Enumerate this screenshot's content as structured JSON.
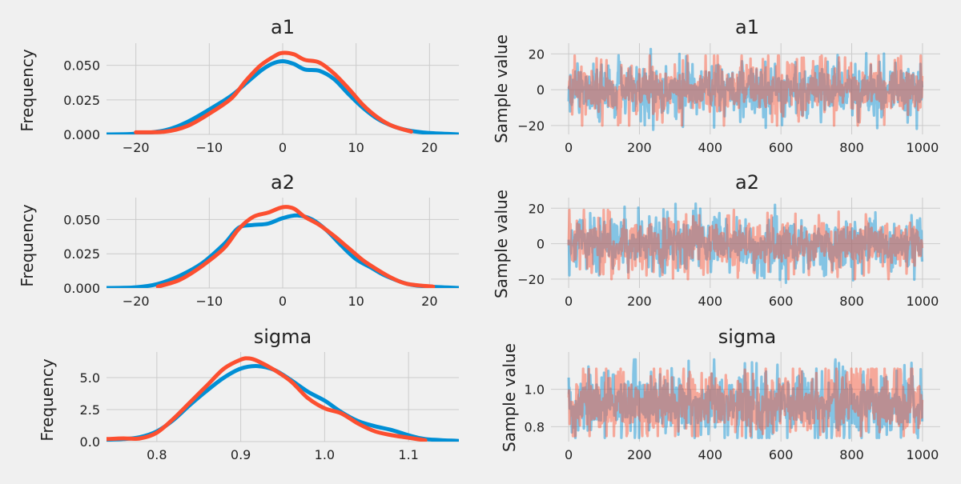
{
  "figure": {
    "background": "#f0f0f0",
    "colors": {
      "chain_1": "#008fd5",
      "chain_2": "#fc4f30"
    }
  },
  "chart_data": [
    {
      "id": "density-a1",
      "type": "line",
      "title": "a1",
      "xlabel": "",
      "ylabel": "Frequency",
      "xlim": [
        -24,
        24
      ],
      "ylim": [
        0,
        0.066
      ],
      "xticks": [
        -20,
        -10,
        0,
        10,
        20
      ],
      "xtick_labels": [
        "−20",
        "−10",
        "0",
        "10",
        "20"
      ],
      "yticks": [
        0,
        0.025,
        0.05
      ],
      "ytick_labels": [
        "0.000",
        "0.025",
        "0.050"
      ],
      "grid": true,
      "series": [
        {
          "color": "#008fd5",
          "x": [
            -24,
            -20,
            -16,
            -13,
            -10,
            -7,
            -5,
            -3,
            -1.5,
            0,
            1.5,
            3,
            5,
            7,
            9,
            11,
            13,
            15,
            17,
            20,
            24
          ],
          "y": [
            0,
            0.0005,
            0.003,
            0.009,
            0.018,
            0.028,
            0.037,
            0.046,
            0.051,
            0.053,
            0.051,
            0.047,
            0.046,
            0.04,
            0.029,
            0.019,
            0.011,
            0.006,
            0.003,
            0.001,
            0
          ]
        },
        {
          "color": "#fc4f30",
          "x": [
            -20,
            -16,
            -13,
            -10,
            -7,
            -5,
            -3,
            -1,
            0,
            1.5,
            3,
            5,
            7,
            9,
            11,
            13,
            15,
            17.5
          ],
          "y": [
            0.0015,
            0.002,
            0.006,
            0.015,
            0.026,
            0.039,
            0.05,
            0.057,
            0.059,
            0.058,
            0.054,
            0.052,
            0.044,
            0.033,
            0.021,
            0.012,
            0.006,
            0.002
          ]
        }
      ]
    },
    {
      "id": "trace-a1",
      "type": "line",
      "title": "a1",
      "xlabel": "",
      "ylabel": "Sample value",
      "xlim": [
        -50,
        1050
      ],
      "ylim": [
        -25,
        26
      ],
      "xticks": [
        0,
        200,
        400,
        600,
        800,
        1000
      ],
      "xtick_labels": [
        "0",
        "200",
        "400",
        "600",
        "800",
        "1000"
      ],
      "yticks": [
        -20,
        0,
        20
      ],
      "ytick_labels": [
        "−20",
        "0",
        "20"
      ],
      "grid": true,
      "trace": {
        "n": 1000,
        "center": 0,
        "sd": 6,
        "chain_1_range": [
          -24.5,
          24.5
        ],
        "chain_2_range": [
          -20,
          19
        ],
        "opacity": 0.45
      }
    },
    {
      "id": "density-a2",
      "type": "line",
      "title": "a2",
      "xlabel": "",
      "ylabel": "Frequency",
      "xlim": [
        -24,
        24
      ],
      "ylim": [
        0,
        0.066
      ],
      "xticks": [
        -20,
        -10,
        0,
        10,
        20
      ],
      "xtick_labels": [
        "−20",
        "−10",
        "0",
        "10",
        "20"
      ],
      "yticks": [
        0,
        0.025,
        0.05
      ],
      "ytick_labels": [
        "0.000",
        "0.025",
        "0.050"
      ],
      "grid": true,
      "series": [
        {
          "color": "#008fd5",
          "x": [
            -24,
            -20,
            -17,
            -14,
            -11,
            -8,
            -6,
            -4,
            -2,
            0,
            2,
            4,
            6,
            8,
            10,
            12,
            14,
            17,
            20,
            24
          ],
          "y": [
            0,
            0.0005,
            0.003,
            0.009,
            0.018,
            0.032,
            0.044,
            0.046,
            0.047,
            0.051,
            0.053,
            0.05,
            0.042,
            0.031,
            0.021,
            0.015,
            0.009,
            0.003,
            0.001,
            0
          ]
        },
        {
          "color": "#fc4f30",
          "x": [
            -17,
            -14,
            -11,
            -8,
            -6,
            -4,
            -2,
            0,
            1.5,
            3,
            5,
            7,
            9,
            11,
            13,
            15,
            17,
            20.5
          ],
          "y": [
            0.001,
            0.006,
            0.016,
            0.029,
            0.043,
            0.052,
            0.055,
            0.059,
            0.058,
            0.052,
            0.046,
            0.038,
            0.029,
            0.02,
            0.013,
            0.007,
            0.003,
            0.001
          ]
        }
      ]
    },
    {
      "id": "trace-a2",
      "type": "line",
      "title": "a2",
      "xlabel": "",
      "ylabel": "Sample value",
      "xlim": [
        -50,
        1050
      ],
      "ylim": [
        -25,
        26
      ],
      "xticks": [
        0,
        200,
        400,
        600,
        800,
        1000
      ],
      "xtick_labels": [
        "0",
        "200",
        "400",
        "600",
        "800",
        "1000"
      ],
      "yticks": [
        -20,
        0,
        20
      ],
      "ytick_labels": [
        "−20",
        "0",
        "20"
      ],
      "grid": true,
      "trace": {
        "n": 1000,
        "center": 0,
        "sd": 6,
        "chain_1_range": [
          -24.5,
          24.5
        ],
        "chain_2_range": [
          -20,
          19
        ],
        "opacity": 0.45
      }
    },
    {
      "id": "density-sigma",
      "type": "line",
      "title": "sigma",
      "xlabel": "",
      "ylabel": "Frequency",
      "xlim": [
        0.74,
        1.16
      ],
      "ylim": [
        0,
        7.0
      ],
      "xticks": [
        0.8,
        0.9,
        1.0,
        1.1
      ],
      "xtick_labels": [
        "0.8",
        "0.9",
        "1.0",
        "1.1"
      ],
      "yticks": [
        0,
        2.5,
        5.0
      ],
      "ytick_labels": [
        "0.0",
        "2.5",
        "5.0"
      ],
      "grid": true,
      "series": [
        {
          "color": "#008fd5",
          "x": [
            0.74,
            0.76,
            0.78,
            0.8,
            0.82,
            0.84,
            0.86,
            0.88,
            0.9,
            0.92,
            0.94,
            0.96,
            0.98,
            1.0,
            1.02,
            1.04,
            1.06,
            1.08,
            1.1,
            1.12,
            1.16
          ],
          "y": [
            0.15,
            0.2,
            0.35,
            0.8,
            1.7,
            2.9,
            4.0,
            5.0,
            5.7,
            5.9,
            5.6,
            4.8,
            3.9,
            3.2,
            2.3,
            1.6,
            1.2,
            0.9,
            0.5,
            0.2,
            0.05
          ]
        },
        {
          "color": "#fc4f30",
          "x": [
            0.74,
            0.76,
            0.78,
            0.8,
            0.82,
            0.84,
            0.86,
            0.88,
            0.9,
            0.91,
            0.92,
            0.94,
            0.96,
            0.98,
            1.0,
            1.02,
            1.04,
            1.06,
            1.08,
            1.1,
            1.12
          ],
          "y": [
            0.2,
            0.25,
            0.25,
            0.7,
            1.8,
            3.1,
            4.4,
            5.7,
            6.4,
            6.5,
            6.3,
            5.6,
            4.7,
            3.4,
            2.6,
            2.2,
            1.4,
            0.8,
            0.5,
            0.3,
            0.1
          ]
        }
      ]
    },
    {
      "id": "trace-sigma",
      "type": "line",
      "title": "sigma",
      "xlabel": "",
      "ylabel": "Sample value",
      "xlim": [
        -50,
        1050
      ],
      "ylim": [
        0.72,
        1.2
      ],
      "xticks": [
        0,
        200,
        400,
        600,
        800,
        1000
      ],
      "xtick_labels": [
        "0",
        "200",
        "400",
        "600",
        "800",
        "1000"
      ],
      "yticks": [
        0.8,
        1.0
      ],
      "ytick_labels": [
        "0.8",
        "1.0"
      ],
      "grid": true,
      "trace": {
        "n": 1000,
        "center": 0.92,
        "sd": 0.07,
        "chain_1_range": [
          0.74,
          1.16
        ],
        "chain_2_range": [
          0.75,
          1.11
        ],
        "opacity": 0.45
      }
    }
  ]
}
